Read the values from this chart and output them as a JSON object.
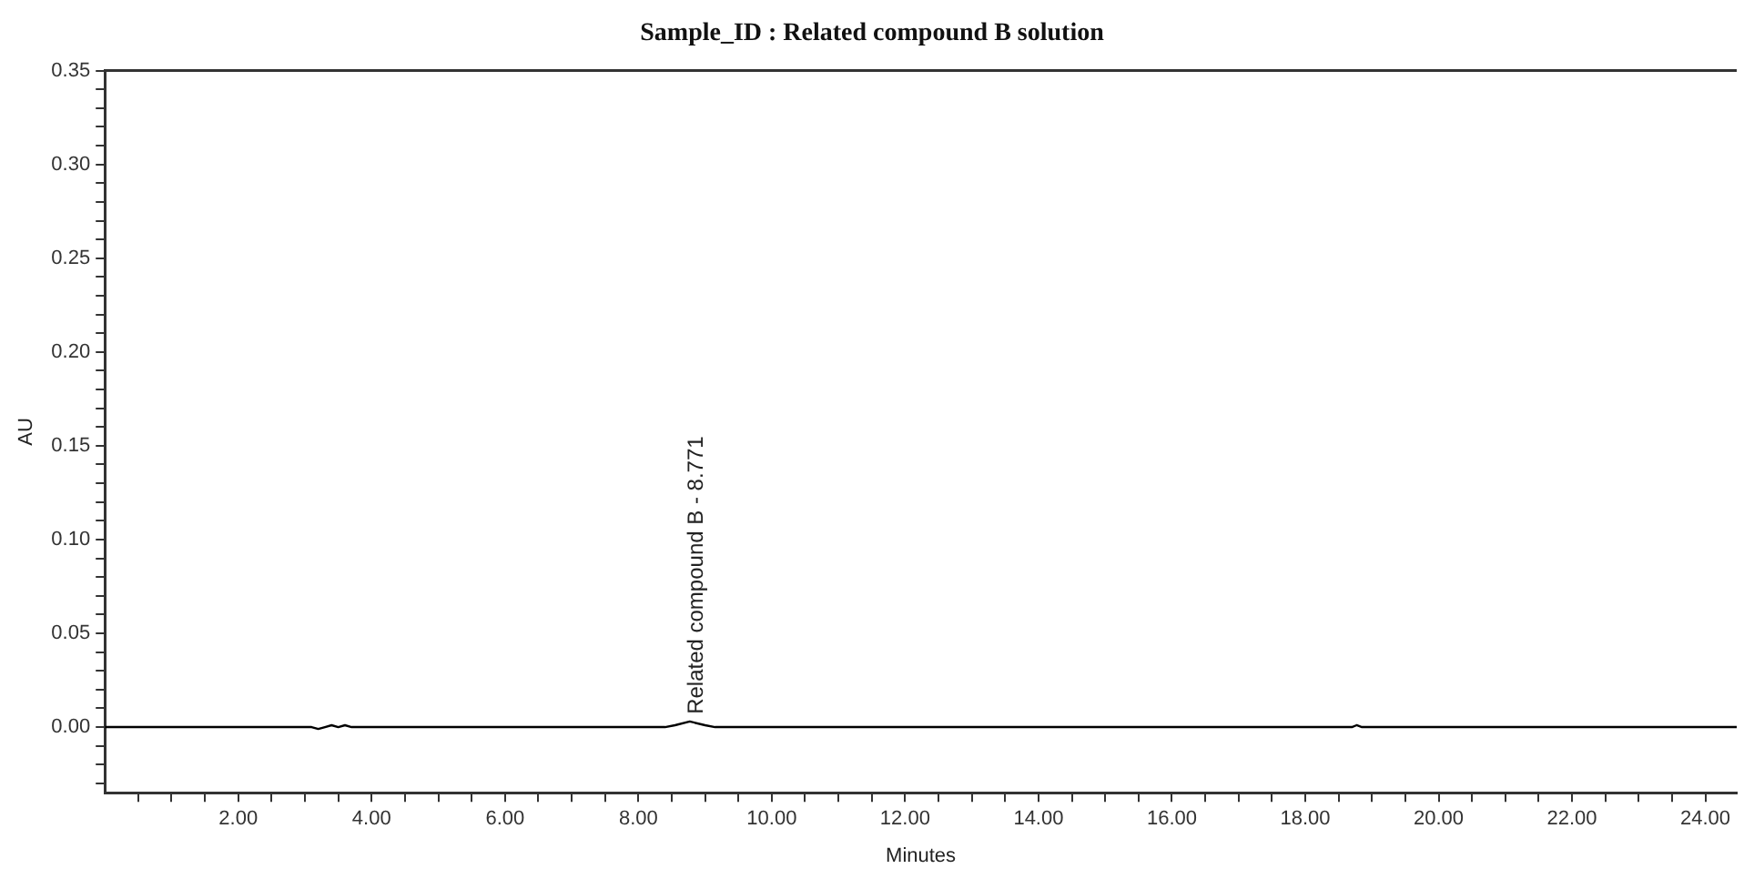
{
  "chart_data": {
    "type": "line",
    "title": "Sample_ID : Related compound B solution",
    "xlabel": "Minutes",
    "ylabel": "AU",
    "series": [
      {
        "color": "#000000",
        "x": [
          0,
          3.1,
          3.2,
          3.3,
          3.4,
          3.5,
          3.6,
          3.7,
          8.4,
          8.55,
          8.771,
          9.0,
          9.15,
          18.7,
          18.77,
          18.85,
          24.47
        ],
        "values": [
          0,
          0,
          -0.001,
          0,
          0.001,
          0,
          0.001,
          0,
          0,
          0.001,
          0.003,
          0.001,
          0,
          0,
          0.001,
          0,
          0
        ]
      }
    ],
    "annotations": [
      {
        "text": "Related compound B - 8.771",
        "x": 8.771,
        "y": 0.003
      }
    ],
    "xlim": [
      0,
      24.47
    ],
    "xticks": [
      {
        "value": 0.5,
        "label": null
      },
      {
        "value": 1,
        "label": null
      },
      {
        "value": 1.5,
        "label": null
      },
      {
        "value": 2,
        "label": "2.00"
      },
      {
        "value": 2.5,
        "label": null
      },
      {
        "value": 3,
        "label": null
      },
      {
        "value": 3.5,
        "label": null
      },
      {
        "value": 4,
        "label": "4.00"
      },
      {
        "value": 4.5,
        "label": null
      },
      {
        "value": 5,
        "label": null
      },
      {
        "value": 5.5,
        "label": null
      },
      {
        "value": 6,
        "label": "6.00"
      },
      {
        "value": 6.5,
        "label": null
      },
      {
        "value": 7,
        "label": null
      },
      {
        "value": 7.5,
        "label": null
      },
      {
        "value": 8,
        "label": "8.00"
      },
      {
        "value": 8.5,
        "label": null
      },
      {
        "value": 9,
        "label": null
      },
      {
        "value": 9.5,
        "label": null
      },
      {
        "value": 10,
        "label": "10.00"
      },
      {
        "value": 10.5,
        "label": null
      },
      {
        "value": 11,
        "label": null
      },
      {
        "value": 11.5,
        "label": null
      },
      {
        "value": 12,
        "label": "12.00"
      },
      {
        "value": 12.5,
        "label": null
      },
      {
        "value": 13,
        "label": null
      },
      {
        "value": 13.5,
        "label": null
      },
      {
        "value": 14,
        "label": "14.00"
      },
      {
        "value": 14.5,
        "label": null
      },
      {
        "value": 15,
        "label": null
      },
      {
        "value": 15.5,
        "label": null
      },
      {
        "value": 16,
        "label": "16.00"
      },
      {
        "value": 16.5,
        "label": null
      },
      {
        "value": 17,
        "label": null
      },
      {
        "value": 17.5,
        "label": null
      },
      {
        "value": 18,
        "label": "18.00"
      },
      {
        "value": 18.5,
        "label": null
      },
      {
        "value": 19,
        "label": null
      },
      {
        "value": 19.5,
        "label": null
      },
      {
        "value": 20,
        "label": "20.00"
      },
      {
        "value": 20.5,
        "label": null
      },
      {
        "value": 21,
        "label": null
      },
      {
        "value": 21.5,
        "label": null
      },
      {
        "value": 22,
        "label": "22.00"
      },
      {
        "value": 22.5,
        "label": null
      },
      {
        "value": 23,
        "label": null
      },
      {
        "value": 23.5,
        "label": null
      },
      {
        "value": 24,
        "label": "24.00"
      }
    ],
    "ylim": [
      -0.035,
      0.35
    ],
    "yticks": [
      {
        "value": -0.03,
        "label": null
      },
      {
        "value": -0.02,
        "label": null
      },
      {
        "value": -0.01,
        "label": null
      },
      {
        "value": 0,
        "label": "0.00"
      },
      {
        "value": 0.01,
        "label": null
      },
      {
        "value": 0.02,
        "label": null
      },
      {
        "value": 0.03,
        "label": null
      },
      {
        "value": 0.04,
        "label": null
      },
      {
        "value": 0.05,
        "label": "0.05"
      },
      {
        "value": 0.06,
        "label": null
      },
      {
        "value": 0.07,
        "label": null
      },
      {
        "value": 0.08,
        "label": null
      },
      {
        "value": 0.09,
        "label": null
      },
      {
        "value": 0.1,
        "label": "0.10"
      },
      {
        "value": 0.11,
        "label": null
      },
      {
        "value": 0.12,
        "label": null
      },
      {
        "value": 0.13,
        "label": null
      },
      {
        "value": 0.14,
        "label": null
      },
      {
        "value": 0.15,
        "label": "0.15"
      },
      {
        "value": 0.16,
        "label": null
      },
      {
        "value": 0.17,
        "label": null
      },
      {
        "value": 0.18,
        "label": null
      },
      {
        "value": 0.19,
        "label": null
      },
      {
        "value": 0.2,
        "label": "0.20"
      },
      {
        "value": 0.21,
        "label": null
      },
      {
        "value": 0.22,
        "label": null
      },
      {
        "value": 0.23,
        "label": null
      },
      {
        "value": 0.24,
        "label": null
      },
      {
        "value": 0.25,
        "label": "0.25"
      },
      {
        "value": 0.26,
        "label": null
      },
      {
        "value": 0.27,
        "label": null
      },
      {
        "value": 0.28,
        "label": null
      },
      {
        "value": 0.29,
        "label": null
      },
      {
        "value": 0.3,
        "label": "0.30"
      },
      {
        "value": 0.31,
        "label": null
      },
      {
        "value": 0.32,
        "label": null
      },
      {
        "value": 0.33,
        "label": null
      },
      {
        "value": 0.34,
        "label": null
      },
      {
        "value": 0.35,
        "label": "0.35"
      }
    ],
    "grid": false,
    "legend": false,
    "marker": "none",
    "line_style": "solid"
  }
}
